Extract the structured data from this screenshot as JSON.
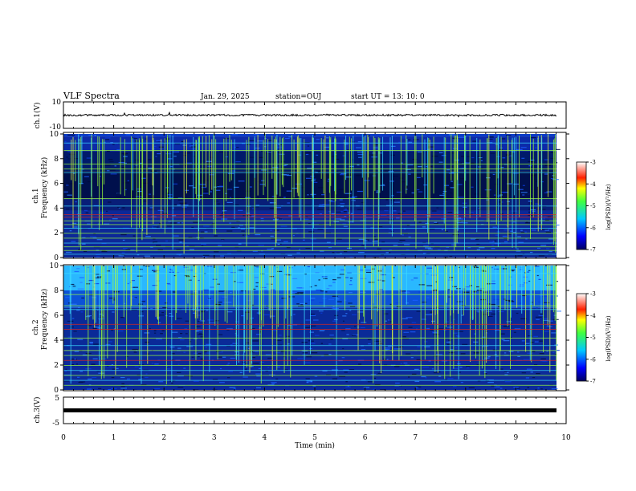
{
  "header": {
    "title": "VLF Spectra",
    "date": "Jan. 29, 2025",
    "station": "station=OUJ",
    "start_ut": "start  UT =  13: 10: 0"
  },
  "chart_data": [
    {
      "type": "line",
      "panel": "ch1-waveform",
      "ylabel": "ch.1(V)",
      "ylim": [
        -10,
        10
      ],
      "yticks": [
        "10",
        "-10"
      ],
      "xlim": [
        0,
        10
      ],
      "baseline": 0
    },
    {
      "type": "heatmap",
      "panel": "ch1-spectrogram",
      "ylabel_top": "ch.1",
      "ylabel": "Frequency (kHz)",
      "ylim": [
        0,
        10
      ],
      "yticks": [
        "0",
        "2",
        "4",
        "6",
        "8",
        "10"
      ],
      "xlim": [
        0,
        10
      ],
      "colorbar": {
        "label": "log(PSD)(V²/Hz)",
        "range": [
          -7,
          -3
        ],
        "ticks": [
          "-3",
          "-4",
          "-5",
          "-6",
          "-7"
        ]
      }
    },
    {
      "type": "heatmap",
      "panel": "ch2-spectrogram",
      "ylabel_top": "ch.2",
      "ylabel": "Frequency (kHz)",
      "ylim": [
        0,
        10
      ],
      "yticks": [
        "0",
        "2",
        "4",
        "6",
        "8",
        "10"
      ],
      "xlim": [
        0,
        10
      ],
      "colorbar": {
        "label": "log(PSD)(V²/Hz)",
        "range": [
          -7,
          -3
        ],
        "ticks": [
          "-3",
          "-4",
          "-5",
          "-6",
          "-7"
        ]
      }
    },
    {
      "type": "line",
      "panel": "ch3-waveform",
      "ylabel": "ch.3(V)",
      "ylim": [
        -5,
        5
      ],
      "yticks": [
        "5",
        "-5"
      ],
      "xlim": [
        0,
        10
      ],
      "baseline": 0
    }
  ],
  "xaxis": {
    "label": "Time (min)",
    "ticks": [
      "0",
      "1",
      "2",
      "3",
      "4",
      "5",
      "6",
      "7",
      "8",
      "9",
      "10"
    ]
  },
  "colors": {
    "background_dark": "#000a3c",
    "background_mid": "#0a2a9c",
    "line_green": "#9cff3c",
    "line_cyan": "#3cdcff",
    "line_red": "#e0281e",
    "trace": "#000000"
  }
}
